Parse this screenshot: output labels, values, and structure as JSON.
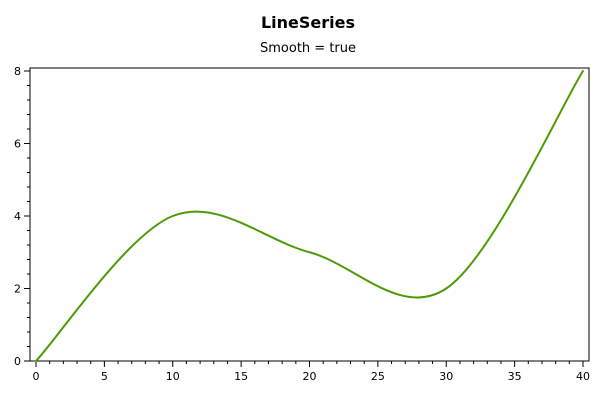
{
  "chart_data": {
    "type": "line",
    "title": "LineSeries",
    "subtitle": "Smooth = true",
    "xlabel": "",
    "ylabel": "",
    "xlim": [
      0,
      40
    ],
    "ylim": [
      0,
      8
    ],
    "x_major_ticks": [
      0,
      5,
      10,
      15,
      20,
      25,
      30,
      35,
      40
    ],
    "x_minor_step": 1,
    "y_major_ticks": [
      0,
      2,
      4,
      6,
      8
    ],
    "y_minor_step": 0.4,
    "grid": false,
    "smooth": true,
    "series": [
      {
        "color": "#4e9a06",
        "points": [
          {
            "x": 0,
            "y": 0
          },
          {
            "x": 10,
            "y": 4
          },
          {
            "x": 20,
            "y": 3
          },
          {
            "x": 30,
            "y": 2
          },
          {
            "x": 40,
            "y": 8
          }
        ]
      }
    ]
  }
}
